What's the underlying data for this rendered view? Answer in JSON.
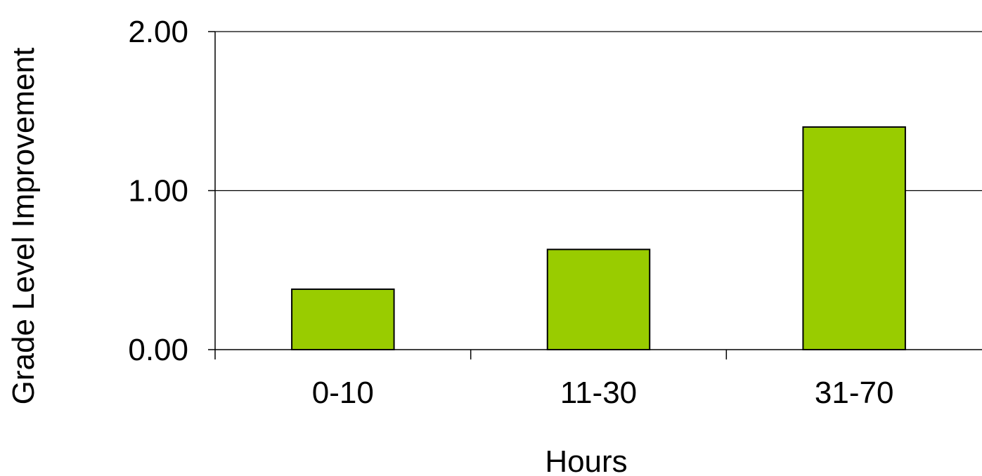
{
  "chart_data": {
    "type": "bar",
    "title": "",
    "xlabel": "Hours",
    "ylabel": "Grade Level Improvement",
    "categories": [
      "0-10",
      "11-30",
      "31-70"
    ],
    "values": [
      0.38,
      0.63,
      1.4
    ],
    "ylim": [
      0,
      2
    ],
    "yticks": [
      "0.00",
      "1.00",
      "2.00"
    ],
    "ytick_values": [
      0,
      1,
      2
    ],
    "grid": "horizontal",
    "legend": "none",
    "colors": {
      "bar_fill": "#99cc00",
      "bar_stroke": "#000000",
      "axis": "#000000",
      "grid": "#000000"
    }
  }
}
